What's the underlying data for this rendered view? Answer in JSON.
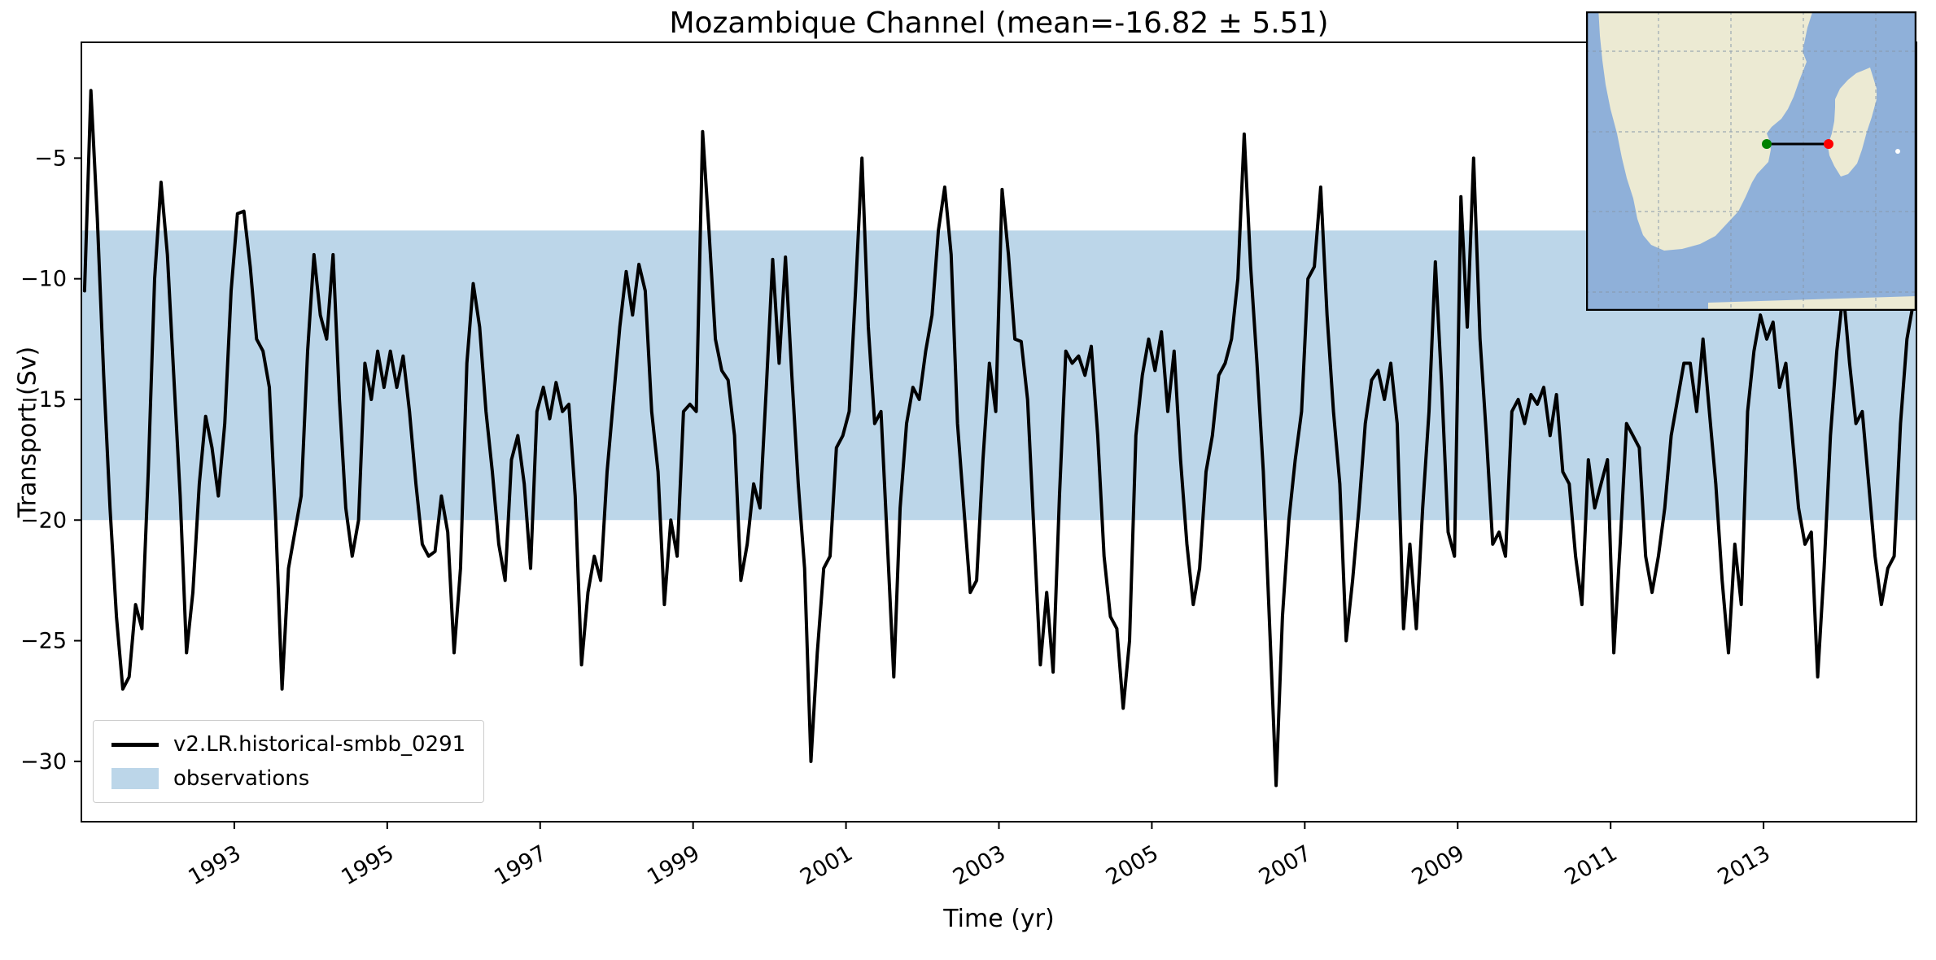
{
  "chart_data": {
    "type": "line",
    "title": "Mozambique Channel (mean=-16.82 ± 5.51)",
    "mean": -16.82,
    "std": 5.51,
    "xlabel": "Time (yr)",
    "ylabel": "Transport (Sv)",
    "xlim": [
      1991,
      2015
    ],
    "ylim": [
      -32.5,
      -0.2
    ],
    "x_ticks": [
      1993,
      1995,
      1997,
      1999,
      2001,
      2003,
      2005,
      2007,
      2009,
      2011,
      2013
    ],
    "y_ticks": [
      -5,
      -10,
      -15,
      -20,
      -25,
      -30
    ],
    "grid": false,
    "legend_position": "lower left",
    "observations_band": {
      "low": -20,
      "high": -8,
      "color": "#bcd6e9",
      "label": "observations"
    },
    "series": [
      {
        "name": "v2.LR.historical-smbb_0291",
        "color": "#000000",
        "time_axis": "monthly from 1991-01 to 2014-12",
        "start_year": 1991,
        "monthly_values": [
          -10.5,
          -2.2,
          -7.5,
          -14,
          -19.5,
          -24,
          -27,
          -26.5,
          -23.5,
          -24.5,
          -18,
          -10,
          -6,
          -9,
          -14,
          -19,
          -25.5,
          -23,
          -18.5,
          -15.7,
          -17,
          -19,
          -16,
          -10.5,
          -7.3,
          -7.2,
          -9.5,
          -12.5,
          -13,
          -14.5,
          -20,
          -27,
          -22,
          -20.5,
          -19,
          -13,
          -9,
          -11.5,
          -12.5,
          -9,
          -15,
          -19.5,
          -21.5,
          -20,
          -13.5,
          -15,
          -13,
          -14.5,
          -13,
          -14.5,
          -13.2,
          -15.5,
          -18.5,
          -21,
          -21.5,
          -21.3,
          -19,
          -20.5,
          -25.5,
          -22,
          -13.5,
          -10.2,
          -12,
          -15.5,
          -18,
          -21,
          -22.5,
          -17.5,
          -16.5,
          -18.5,
          -22,
          -15.5,
          -14.5,
          -15.8,
          -14.3,
          -15.5,
          -15.2,
          -19,
          -26,
          -23,
          -21.5,
          -22.5,
          -18,
          -15,
          -12,
          -9.7,
          -11.5,
          -9.4,
          -10.5,
          -15.5,
          -18,
          -23.5,
          -20,
          -21.5,
          -15.5,
          -15.2,
          -15.5,
          -3.9,
          -8,
          -12.5,
          -13.8,
          -14.2,
          -16.5,
          -22.5,
          -21,
          -18.5,
          -19.5,
          -14.5,
          -9.2,
          -13.5,
          -9.1,
          -14,
          -18.5,
          -22,
          -30,
          -25.5,
          -22,
          -21.5,
          -17,
          -16.5,
          -15.5,
          -10.5,
          -5,
          -12,
          -16,
          -15.5,
          -21,
          -26.5,
          -19.5,
          -16,
          -14.5,
          -15,
          -13,
          -11.5,
          -8,
          -6.2,
          -9,
          -16,
          -19.5,
          -23,
          -22.5,
          -17.5,
          -13.5,
          -15.5,
          -6.3,
          -9,
          -12.5,
          -12.6,
          -15,
          -20.5,
          -26,
          -23,
          -26.3,
          -19,
          -13,
          -13.5,
          -13.2,
          -14,
          -12.8,
          -16.5,
          -21.5,
          -24,
          -24.5,
          -27.8,
          -25,
          -16.5,
          -14,
          -12.5,
          -13.8,
          -12.2,
          -15.5,
          -13,
          -17.5,
          -21,
          -23.5,
          -22,
          -18,
          -16.5,
          -14,
          -13.5,
          -12.5,
          -10,
          -4,
          -9.5,
          -13.5,
          -18,
          -24.5,
          -31,
          -24,
          -20,
          -17.5,
          -15.5,
          -10,
          -9.5,
          -6.2,
          -11.5,
          -15.5,
          -18.5,
          -25,
          -22.5,
          -19.5,
          -16,
          -14.2,
          -13.8,
          -15,
          -13.5,
          -16,
          -24.5,
          -21,
          -24.5,
          -19.5,
          -15.5,
          -9.3,
          -14.5,
          -20.5,
          -21.5,
          -6.6,
          -12,
          -5,
          -12.5,
          -16.5,
          -21,
          -20.5,
          -21.5,
          -15.5,
          -15,
          -16,
          -14.8,
          -15.2,
          -14.5,
          -16.5,
          -14.8,
          -18,
          -18.5,
          -21.5,
          -23.5,
          -17.5,
          -19.5,
          -18.5,
          -17.5,
          -25.5,
          -21,
          -16,
          -16.5,
          -17,
          -21.5,
          -23,
          -21.5,
          -19.5,
          -16.5,
          -15,
          -13.5,
          -13.5,
          -15.5,
          -12.5,
          -15.5,
          -18.5,
          -22.5,
          -25.5,
          -21,
          -23.5,
          -15.5,
          -13,
          -11.5,
          -12.5,
          -11.8,
          -14.5,
          -13.5,
          -16.5,
          -19.5,
          -21,
          -20.5,
          -26.5,
          -22,
          -16.5,
          -13,
          -10.5,
          -13.5,
          -16,
          -15.5,
          -18.5,
          -21.5,
          -23.5,
          -22,
          -21.5,
          -16,
          -12.5,
          -11
        ]
      }
    ]
  },
  "legend": [
    {
      "label": "v2.LR.historical-smbb_0291",
      "type": "line",
      "color": "#000000"
    },
    {
      "label": "observations",
      "type": "patch",
      "color": "#bcd6e9"
    }
  ],
  "inset_map": {
    "description": "map of southern Africa and Madagascar with Mozambique Channel section line",
    "ocean_color": "#8fb0d9",
    "land_color": "#ecead3",
    "section_line_color": "#000000",
    "start_marker_color": "#008000",
    "end_marker_color": "#ff0000"
  }
}
